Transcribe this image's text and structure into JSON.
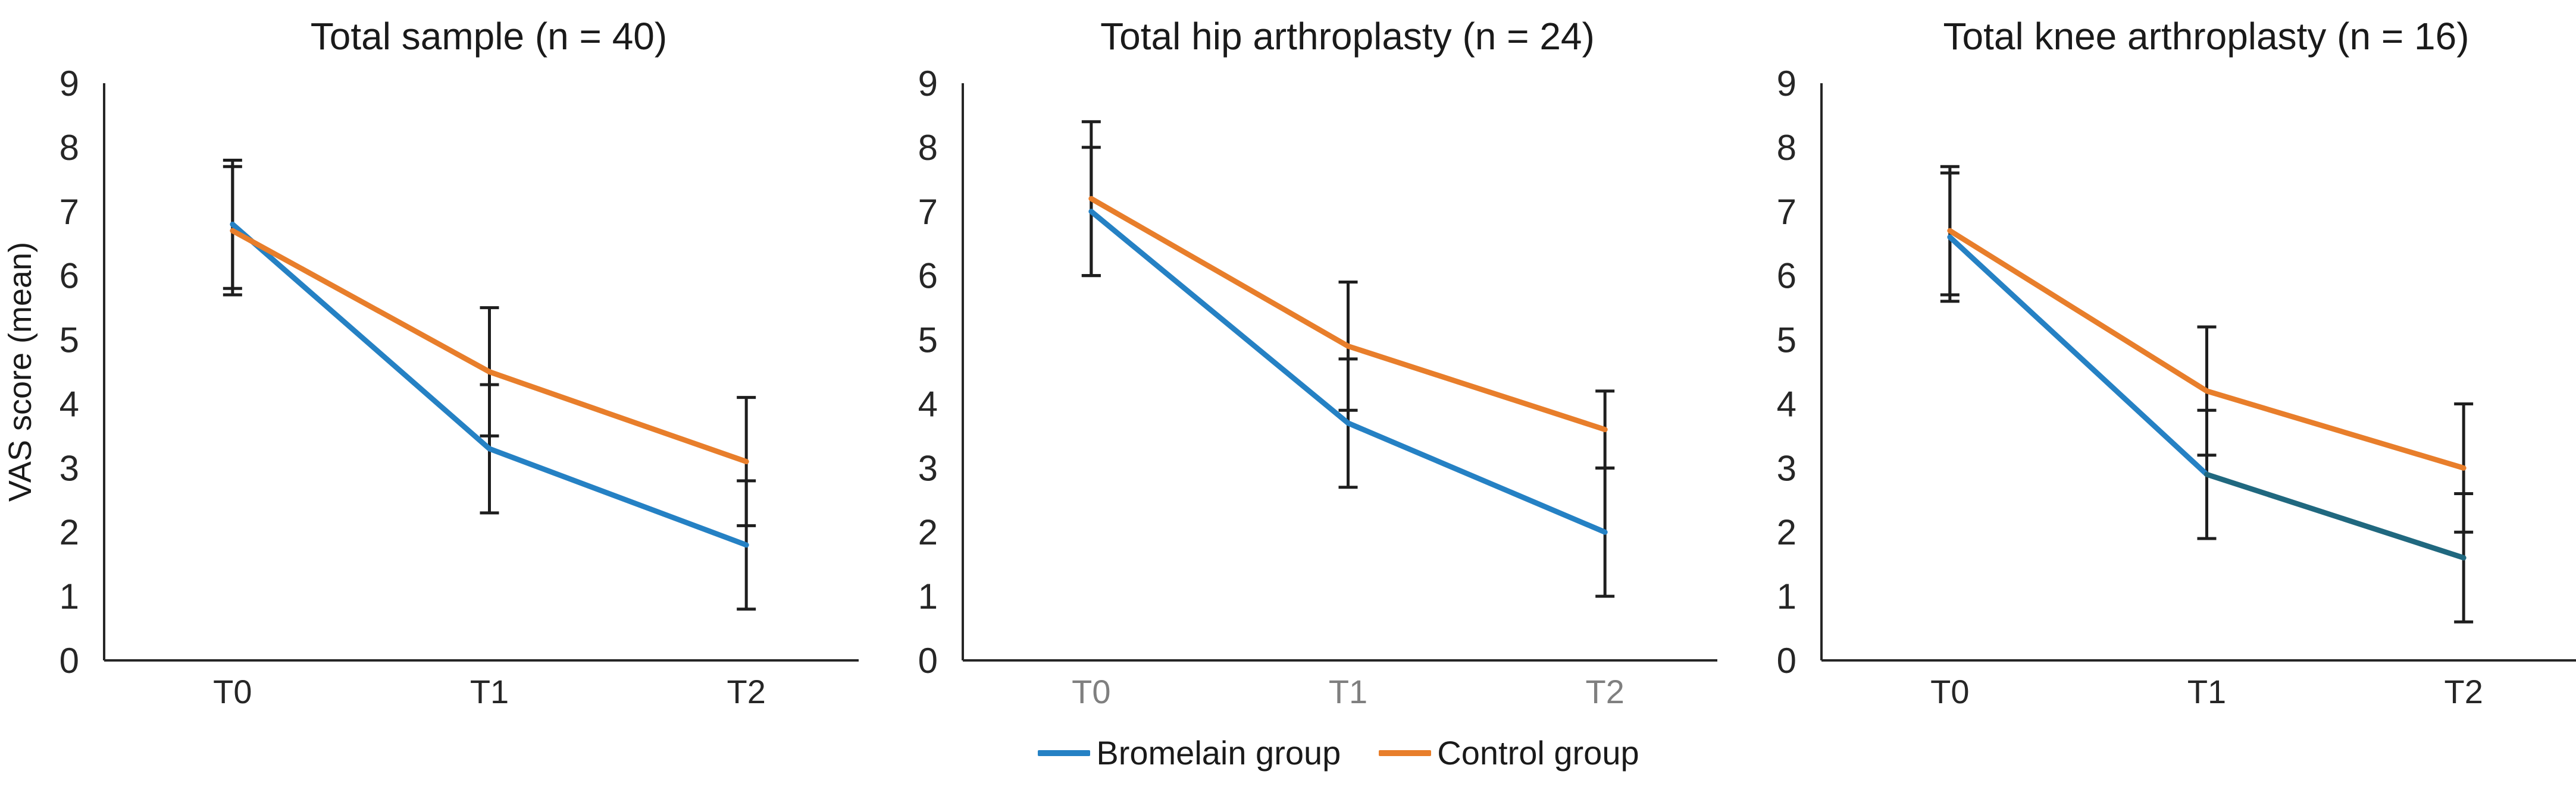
{
  "legend": {
    "items": [
      {
        "label": "Bromelain group",
        "color": "#2581C4"
      },
      {
        "label": "Control group",
        "color": "#E87E2B"
      }
    ]
  },
  "axis": {
    "line_color": "#262626",
    "tick_label_color": "#262626",
    "error_bar_color": "#1e1e1e"
  },
  "chart_data": [
    {
      "type": "line",
      "title": "Total sample (n = 40)",
      "ylabel": "VAS score (mean)",
      "xlabel": "",
      "categories": [
        "T0",
        "T1",
        "T2"
      ],
      "ylim": [
        0,
        9
      ],
      "yticks": [
        0,
        1,
        2,
        3,
        4,
        5,
        6,
        7,
        8,
        9
      ],
      "grid": false,
      "legend_position": "bottom-center",
      "xtick_color": "#262626",
      "series": [
        {
          "name": "Bromelain group",
          "color": "#2581C4",
          "values": [
            6.8,
            3.3,
            1.8
          ],
          "error_low": [
            5.8,
            2.3,
            0.8
          ],
          "error_high": [
            7.8,
            4.3,
            2.8
          ]
        },
        {
          "name": "Control group",
          "color": "#E87E2B",
          "values": [
            6.7,
            4.5,
            3.1
          ],
          "error_low": [
            5.7,
            3.5,
            2.1
          ],
          "error_high": [
            7.7,
            5.5,
            4.1
          ]
        }
      ]
    },
    {
      "type": "line",
      "title": "Total hip arthroplasty (n = 24)",
      "ylabel": "",
      "xlabel": "",
      "categories": [
        "T0",
        "T1",
        "T2"
      ],
      "ylim": [
        0,
        9
      ],
      "yticks": [
        0,
        1,
        2,
        3,
        4,
        5,
        6,
        7,
        8,
        9
      ],
      "grid": false,
      "legend_position": "bottom-center",
      "xtick_color": "#7f7f7f",
      "series": [
        {
          "name": "Bromelain group",
          "color": "#2581C4",
          "values": [
            7.0,
            3.7,
            2.0
          ],
          "error_low": [
            6.0,
            2.7,
            1.0
          ],
          "error_high": [
            8.0,
            4.7,
            3.0
          ]
        },
        {
          "name": "Control group",
          "color": "#E87E2B",
          "values": [
            7.2,
            4.9,
            3.6
          ],
          "error_low": [
            6.0,
            3.9,
            3.0
          ],
          "error_high": [
            8.4,
            5.9,
            4.2
          ]
        }
      ]
    },
    {
      "type": "line",
      "title": "Total knee arthroplasty (n = 16)",
      "ylabel": "",
      "xlabel": "",
      "categories": [
        "T0",
        "T1",
        "T2"
      ],
      "ylim": [
        0,
        9
      ],
      "yticks": [
        0,
        1,
        2,
        3,
        4,
        5,
        6,
        7,
        8,
        9
      ],
      "grid": false,
      "legend_position": "bottom-center",
      "xtick_color": "#262626",
      "series": [
        {
          "name": "Bromelain group",
          "color": "#2581C4",
          "segment_colors": [
            "#2581C4",
            "#20687F"
          ],
          "values": [
            6.6,
            2.9,
            1.6
          ],
          "error_low": [
            5.6,
            1.9,
            0.6
          ],
          "error_high": [
            7.6,
            3.9,
            2.6
          ]
        },
        {
          "name": "Control group",
          "color": "#E87E2B",
          "values": [
            6.7,
            4.2,
            3.0
          ],
          "error_low": [
            5.7,
            3.2,
            2.0
          ],
          "error_high": [
            7.7,
            5.2,
            4.0
          ]
        }
      ]
    }
  ]
}
